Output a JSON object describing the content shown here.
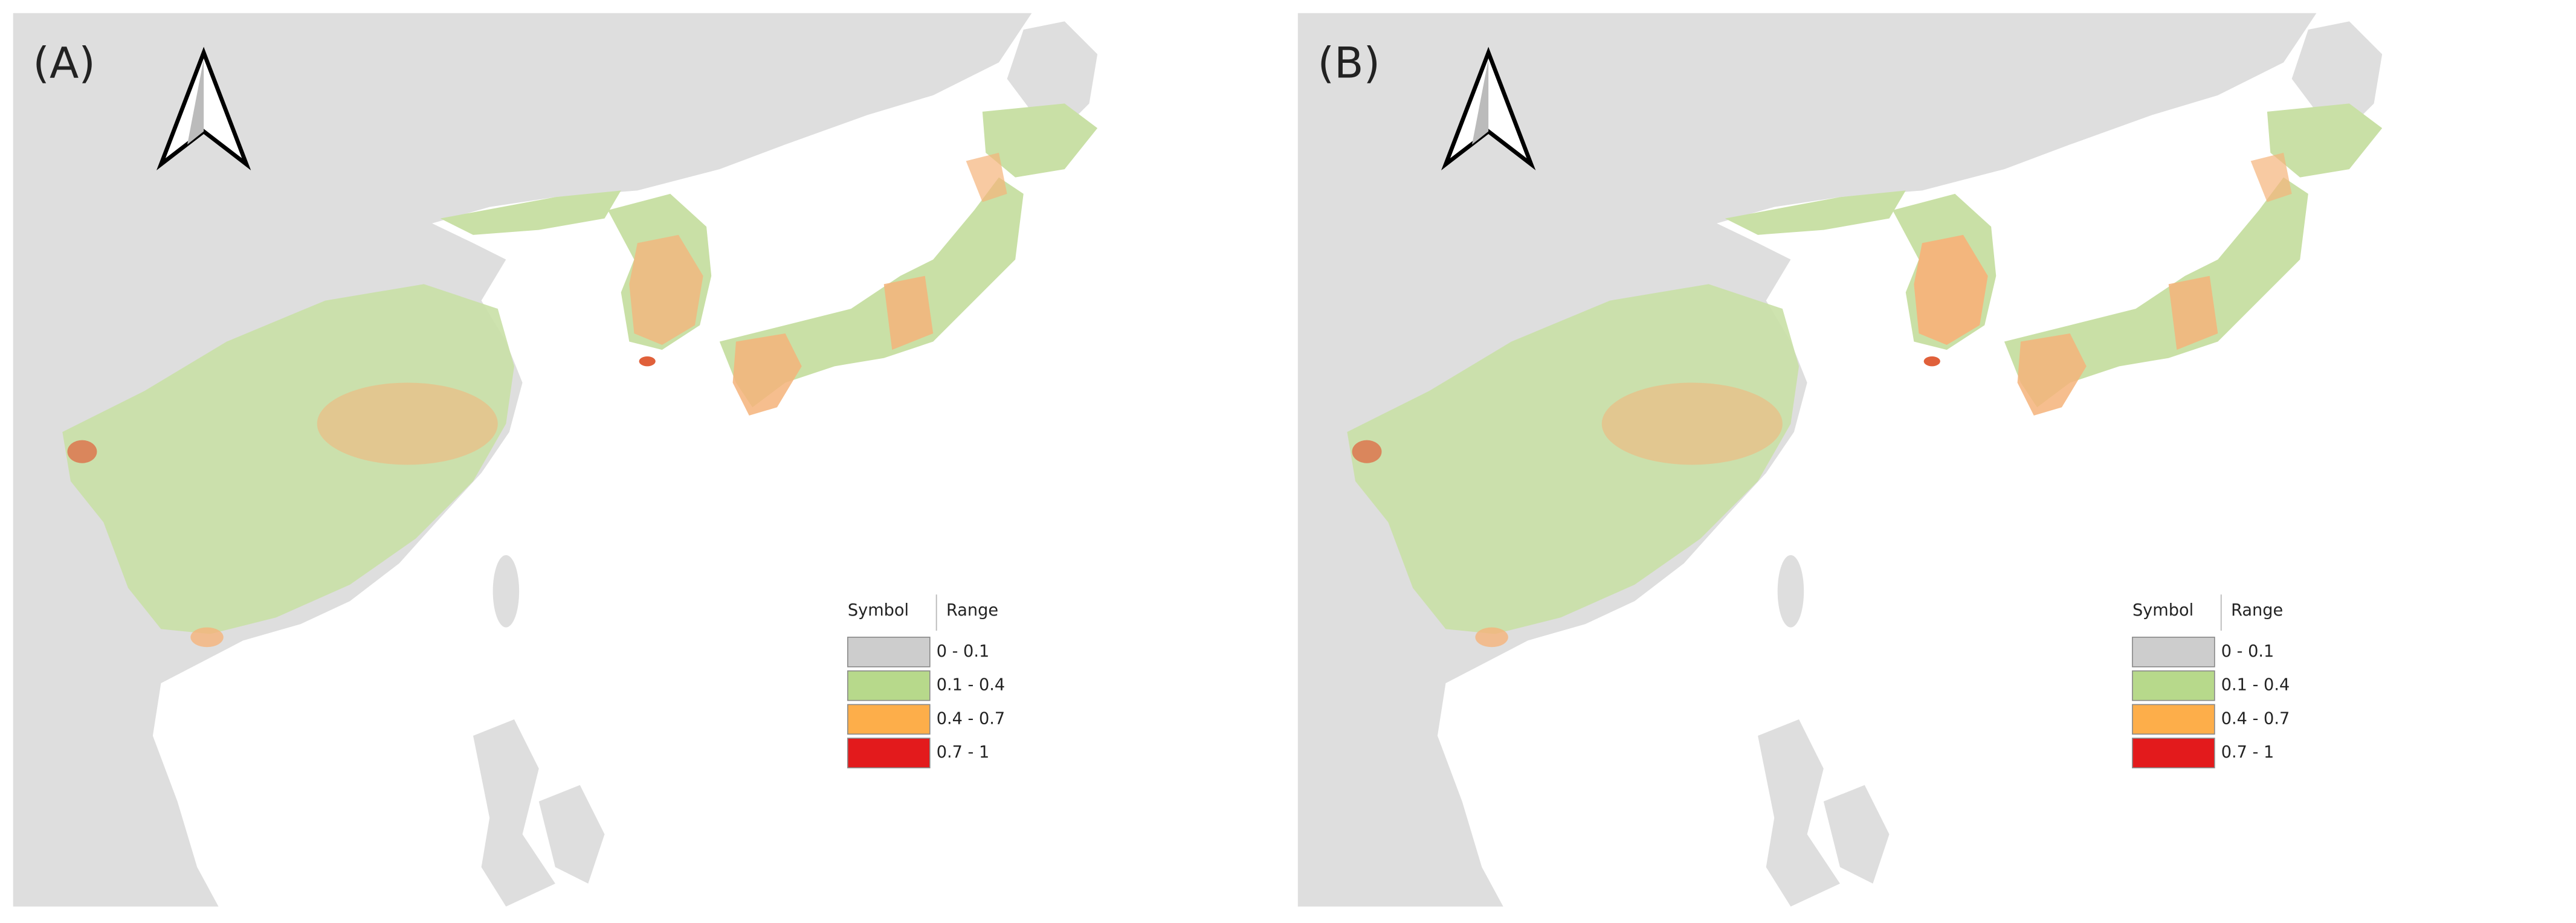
{
  "panels": [
    {
      "label": "(A)",
      "legend": {
        "headers": [
          "Symbol",
          "Range"
        ],
        "items": [
          {
            "range": "0 - 0.1",
            "color": "#cdcdcd"
          },
          {
            "range": "0.1 - 0.4",
            "color": "#b7d98b"
          },
          {
            "range": "0.4 - 0.7",
            "color": "#fdae4a"
          },
          {
            "range": "0.7 - 1",
            "color": "#e31a1c"
          }
        ]
      }
    },
    {
      "label": "(B)",
      "legend": {
        "headers": [
          "Symbol",
          "Range"
        ],
        "items": [
          {
            "range": "0 - 0.1",
            "color": "#cdcdcd"
          },
          {
            "range": "0.1 - 0.4",
            "color": "#b7d98b"
          },
          {
            "range": "0.4 - 0.7",
            "color": "#fdae4a"
          },
          {
            "range": "0.7 - 1",
            "color": "#e31a1c"
          }
        ]
      }
    }
  ]
}
